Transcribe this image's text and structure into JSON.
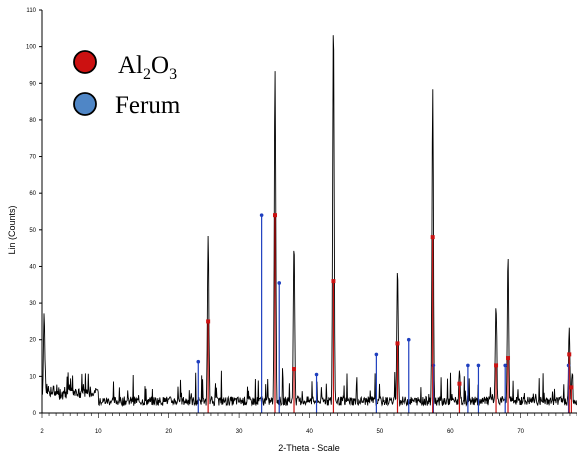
{
  "chart_data": {
    "type": "line",
    "xlabel": "2-Theta - Scale",
    "ylabel": "Lin (Counts)",
    "xlim": [
      2,
      78
    ],
    "ylim": [
      0,
      110
    ],
    "xticks": [
      2,
      10,
      20,
      30,
      40,
      50,
      60,
      70
    ],
    "yticks": [
      0,
      10,
      20,
      30,
      40,
      50,
      60,
      70,
      80,
      90,
      100,
      110
    ],
    "grid": false,
    "legend_position": "top-left",
    "legend": [
      {
        "base": "Al",
        "sub1": "2",
        "mid": "O",
        "sub2": "3",
        "color": "#cc1111"
      },
      {
        "label": "Ferum",
        "color": "#4f86c6"
      }
    ],
    "colors": {
      "pattern": "#000000",
      "al2o3": "#cc1111",
      "ferum": "#1f3fbf"
    },
    "peaks": [
      {
        "x": 2.3,
        "y": 24
      },
      {
        "x": 25.6,
        "y": 46
      },
      {
        "x": 35.1,
        "y": 92
      },
      {
        "x": 37.8,
        "y": 44
      },
      {
        "x": 43.4,
        "y": 106
      },
      {
        "x": 52.5,
        "y": 38
      },
      {
        "x": 57.5,
        "y": 87
      },
      {
        "x": 61.3,
        "y": 9
      },
      {
        "x": 66.5,
        "y": 28
      },
      {
        "x": 68.2,
        "y": 41
      },
      {
        "x": 76.9,
        "y": 22
      }
    ],
    "series": [
      {
        "x": [
          25.6,
          35.1,
          37.8,
          43.4,
          52.5,
          57.5,
          61.3,
          66.5,
          68.2,
          76.9,
          77.2
        ],
        "y": [
          25,
          54,
          12,
          36,
          19,
          48,
          8,
          13,
          15,
          16,
          7
        ]
      },
      {
        "x": [
          24.2,
          33.2,
          35.7,
          41.0,
          49.5,
          54.1,
          57.6,
          62.5,
          64.0,
          67.8,
          76.8
        ],
        "y": [
          14,
          54,
          35.5,
          10.5,
          16,
          20,
          13,
          13,
          13,
          13,
          13
        ]
      }
    ]
  }
}
